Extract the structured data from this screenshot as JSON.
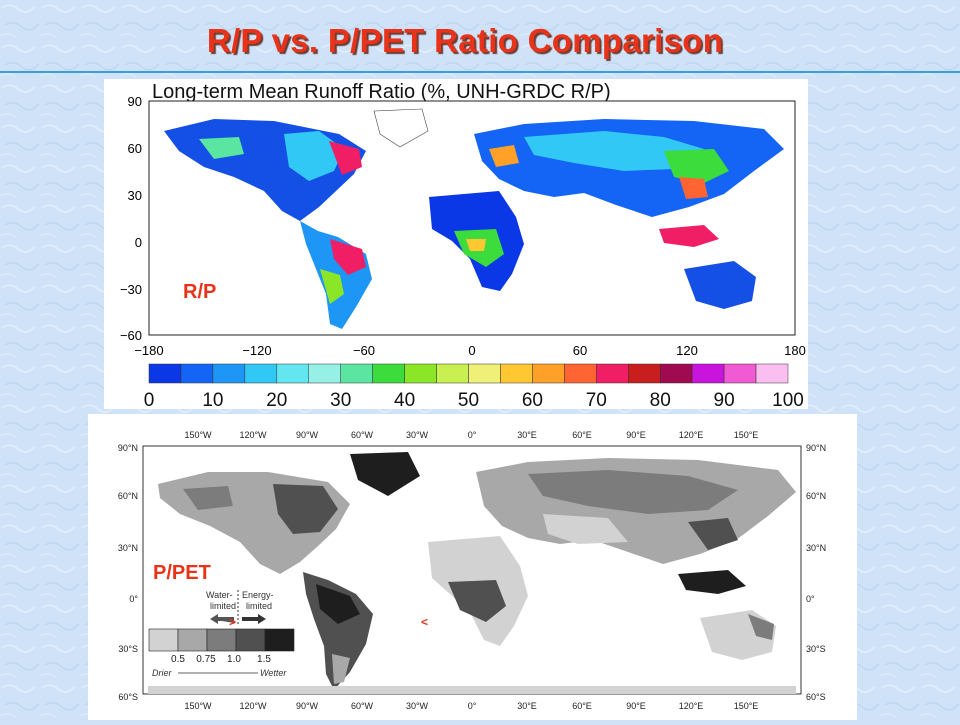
{
  "slide": {
    "title": "R/P vs. P/PET Ratio Comparison"
  },
  "map_rp": {
    "title": "Long-term Mean Runoff Ratio (%, UNH-GRDC R/P)",
    "overlay_label": "R/P",
    "lat_ticks": [
      "90",
      "60",
      "30",
      "0",
      "−30",
      "−60"
    ],
    "lon_ticks": [
      "−180",
      "−120",
      "−60",
      "0",
      "60",
      "120",
      "180"
    ],
    "colorbar": {
      "colors": [
        "#0a38e6",
        "#1464f5",
        "#1e96f5",
        "#32c8f5",
        "#64e6f0",
        "#96f0e6",
        "#5ae6a0",
        "#3cdc3c",
        "#8ce628",
        "#c8f050",
        "#f0f078",
        "#ffc832",
        "#ffa028",
        "#ff6432",
        "#f01e64",
        "#c81e1e",
        "#a00a50",
        "#c814dc",
        "#f05ad2",
        "#fabef0"
      ],
      "labels": [
        "0",
        "10",
        "20",
        "30",
        "40",
        "50",
        "60",
        "70",
        "80",
        "90",
        "100"
      ]
    }
  },
  "map_ppet": {
    "overlay_label": "P/PET",
    "lon_ticks": [
      "150°W",
      "120°W",
      "90°W",
      "60°W",
      "30°W",
      "0°",
      "30°E",
      "60°E",
      "90°E",
      "120°E",
      "150°E"
    ],
    "lat_ticks": [
      "90°N",
      "60°N",
      "30°N",
      "0°",
      "30°S",
      "60°S"
    ],
    "legend": {
      "water_limited": [
        "Water-",
        "limited"
      ],
      "energy_limited": [
        "Energy-",
        "limited"
      ],
      "thresholds": [
        "0.5",
        "0.75",
        "1.0",
        "1.5"
      ],
      "drier": "Drier",
      "wetter": "Wetter",
      "gray_levels": [
        "#d2d2d2",
        "#a8a8a8",
        "#7c7c7c",
        "#505050",
        "#1e1e1e"
      ]
    },
    "arrow_marks": [
      ">",
      "<"
    ]
  },
  "colors": {
    "title": "#e8331a",
    "rule": "#3aa0dd",
    "background": "#cfe2f7"
  }
}
